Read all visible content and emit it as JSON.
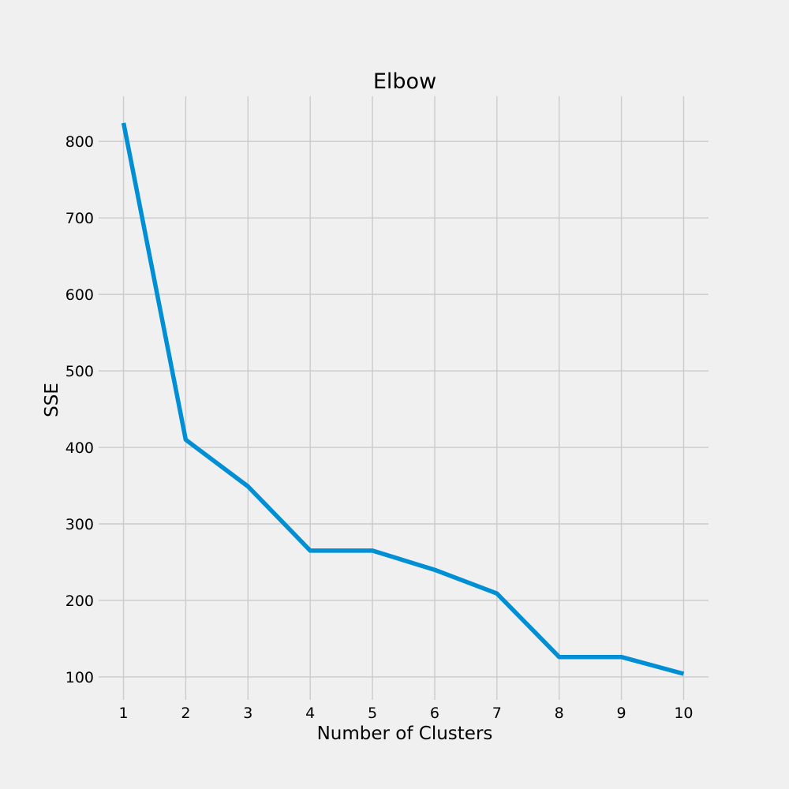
{
  "chart_data": {
    "type": "line",
    "title": "Elbow",
    "xlabel": "Number of Clusters",
    "ylabel": "SSE",
    "x": [
      1,
      2,
      3,
      4,
      5,
      6,
      7,
      8,
      9,
      10
    ],
    "series": [
      {
        "values": [
          824,
          410,
          349,
          265,
          265,
          240,
          209,
          126,
          126,
          104
        ],
        "color": "#008fd5"
      }
    ],
    "xticks": [
      1,
      2,
      3,
      4,
      5,
      6,
      7,
      8,
      9,
      10
    ],
    "yticks": [
      100,
      200,
      300,
      400,
      500,
      600,
      700,
      800
    ],
    "xlim": [
      0.6,
      10.4
    ],
    "ylim": [
      70,
      859
    ],
    "grid": true,
    "background": "#f0f0f0",
    "grid_color": "#cbcbcb"
  }
}
